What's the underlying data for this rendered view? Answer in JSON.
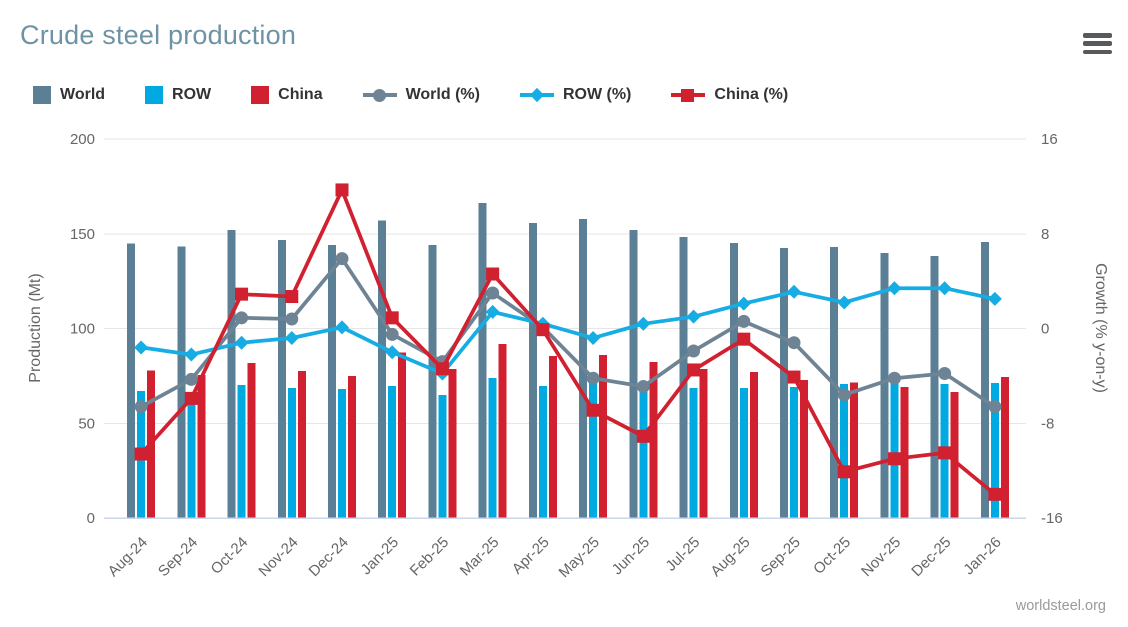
{
  "header": {
    "title": "Crude steel production"
  },
  "menu": {
    "icon": "hamburger-icon"
  },
  "footer": {
    "credit": "worldsteel.org"
  },
  "colors": {
    "title_text": "#6e93a4",
    "legend_text": "#333333",
    "axis_text": "#666666",
    "grid": "#e6e6e6",
    "axis_line": "#ccd6eb",
    "credit_text": "#9a9a9a",
    "menu_icon": "#58595b",
    "world_bar": "#5b7f95",
    "row_bar": "#00a9e0",
    "china_bar": "#d1202f",
    "world_line": "#6e8495",
    "row_line": "#16ade4",
    "china_line": "#d1202f"
  },
  "legend": {
    "items": [
      {
        "label": "World",
        "type": "square",
        "color": "#5b7f95"
      },
      {
        "label": "ROW",
        "type": "square",
        "color": "#00a9e0"
      },
      {
        "label": "China",
        "type": "square",
        "color": "#d1202f"
      },
      {
        "label": "World (%)",
        "type": "line-circle",
        "color": "#6e8495"
      },
      {
        "label": "ROW (%)",
        "type": "line-diamond",
        "color": "#16ade4"
      },
      {
        "label": "China (%)",
        "type": "line-square",
        "color": "#d1202f"
      }
    ]
  },
  "chart_data": {
    "type": "bar+line combo (dual axis)",
    "categories": [
      "Aug-24",
      "Sep-24",
      "Oct-24",
      "Nov-24",
      "Dec-24",
      "Jan-25",
      "Feb-25",
      "Mar-25",
      "Apr-25",
      "May-25",
      "Jun-25",
      "Jul-25",
      "Aug-25",
      "Sep-25",
      "Oct-25",
      "Nov-25",
      "Dec-25",
      "Jan-26"
    ],
    "bar_series": [
      {
        "name": "World",
        "axis": "left",
        "color": "#5b7f95",
        "values": [
          144.8,
          143.3,
          152.1,
          146.8,
          144.1,
          157.0,
          144.1,
          166.2,
          155.7,
          157.8,
          152.0,
          148.3,
          145.1,
          142.5,
          143.0,
          139.8,
          138.3,
          145.6
        ]
      },
      {
        "name": "ROW",
        "axis": "left",
        "color": "#00a9e0",
        "values": [
          66.9,
          65.0,
          70.3,
          68.6,
          68.0,
          69.7,
          64.9,
          73.9,
          69.7,
          71.8,
          66.5,
          68.6,
          68.6,
          69.1,
          70.7,
          71.2,
          70.7,
          71.2
        ]
      },
      {
        "name": "China",
        "axis": "left",
        "color": "#d1202f",
        "values": [
          77.9,
          75.5,
          81.9,
          77.7,
          75.0,
          87.4,
          78.6,
          91.8,
          85.5,
          86.0,
          82.3,
          78.6,
          77.0,
          72.8,
          71.4,
          69.1,
          66.5,
          74.4
        ]
      }
    ],
    "line_series": [
      {
        "name": "World (%)",
        "axis": "right",
        "marker": "circle",
        "color": "#6e8495",
        "values": [
          -6.6,
          -4.3,
          0.9,
          0.8,
          5.9,
          -0.5,
          -2.8,
          3.0,
          0.1,
          -4.2,
          -4.9,
          -1.9,
          0.6,
          -1.2,
          -5.6,
          -4.2,
          -3.8,
          -6.6
        ]
      },
      {
        "name": "ROW (%)",
        "axis": "right",
        "marker": "diamond",
        "color": "#16ade4",
        "values": [
          -1.6,
          -2.2,
          -1.2,
          -0.8,
          0.1,
          -2.0,
          -3.8,
          1.4,
          0.4,
          -0.8,
          0.4,
          1.0,
          2.1,
          3.1,
          2.2,
          3.4,
          3.4,
          2.5
        ]
      },
      {
        "name": "China (%)",
        "axis": "right",
        "marker": "square",
        "color": "#d1202f",
        "values": [
          -10.6,
          -5.9,
          2.9,
          2.7,
          11.7,
          0.9,
          -3.4,
          4.6,
          -0.1,
          -6.9,
          -9.1,
          -3.5,
          -0.9,
          -4.1,
          -12.1,
          -11.0,
          -10.5,
          -14.0
        ]
      }
    ],
    "left_axis": {
      "title": "Production (Mt)",
      "min": 0,
      "max": 200,
      "ticks": [
        0,
        50,
        100,
        150,
        200
      ]
    },
    "right_axis": {
      "title": "Growth (% y-on-y)",
      "min": -16,
      "max": 16,
      "ticks": [
        -16,
        -8,
        0,
        8,
        16
      ]
    },
    "grid": true,
    "legend_position": "top"
  }
}
